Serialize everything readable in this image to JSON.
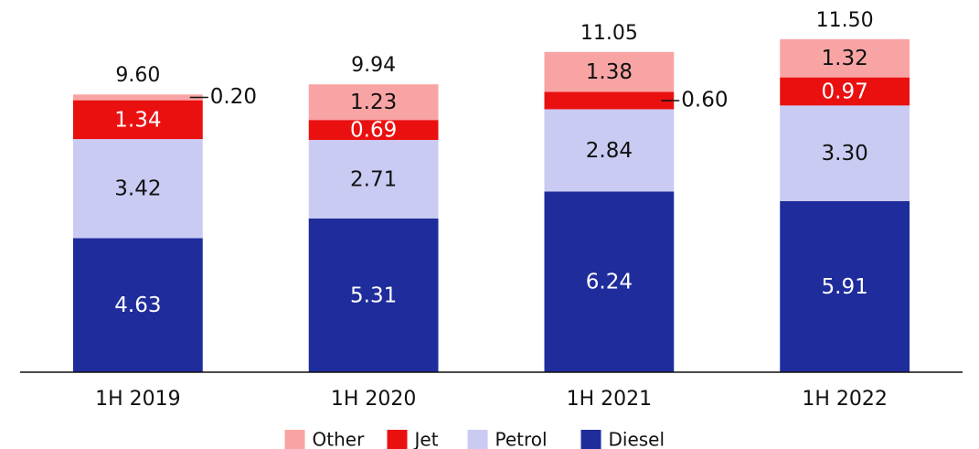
{
  "chart_data": {
    "type": "stacked_bar",
    "categories": [
      "1H 2019",
      "1H 2020",
      "1H 2021",
      "1H 2022"
    ],
    "series": [
      {
        "name": "Diesel",
        "color": "#1f2c9c",
        "values": [
          4.63,
          5.31,
          6.24,
          5.91
        ],
        "value_labels": [
          "4.63",
          "5.31",
          "6.24",
          "5.91"
        ]
      },
      {
        "name": "Petrol",
        "color": "#c9cbf3",
        "values": [
          3.42,
          2.71,
          2.84,
          3.3
        ],
        "value_labels": [
          "3.42",
          "2.71",
          "2.84",
          "3.30"
        ]
      },
      {
        "name": "Jet",
        "color": "#ea1010",
        "values": [
          1.34,
          0.69,
          0.6,
          0.97
        ],
        "value_labels": [
          "1.34",
          "0.69",
          "0.60",
          "0.97"
        ]
      },
      {
        "name": "Other",
        "color": "#f9a4a4",
        "values": [
          0.2,
          1.23,
          1.38,
          1.32
        ],
        "value_labels": [
          "0.20",
          "1.23",
          "1.38",
          "1.32"
        ]
      }
    ],
    "totals": [
      9.6,
      9.94,
      11.05,
      11.5
    ],
    "total_labels": [
      "9.60",
      "9.94",
      "11.05",
      "11.50"
    ],
    "ylim": [
      0,
      12
    ],
    "legend": "bottom"
  }
}
